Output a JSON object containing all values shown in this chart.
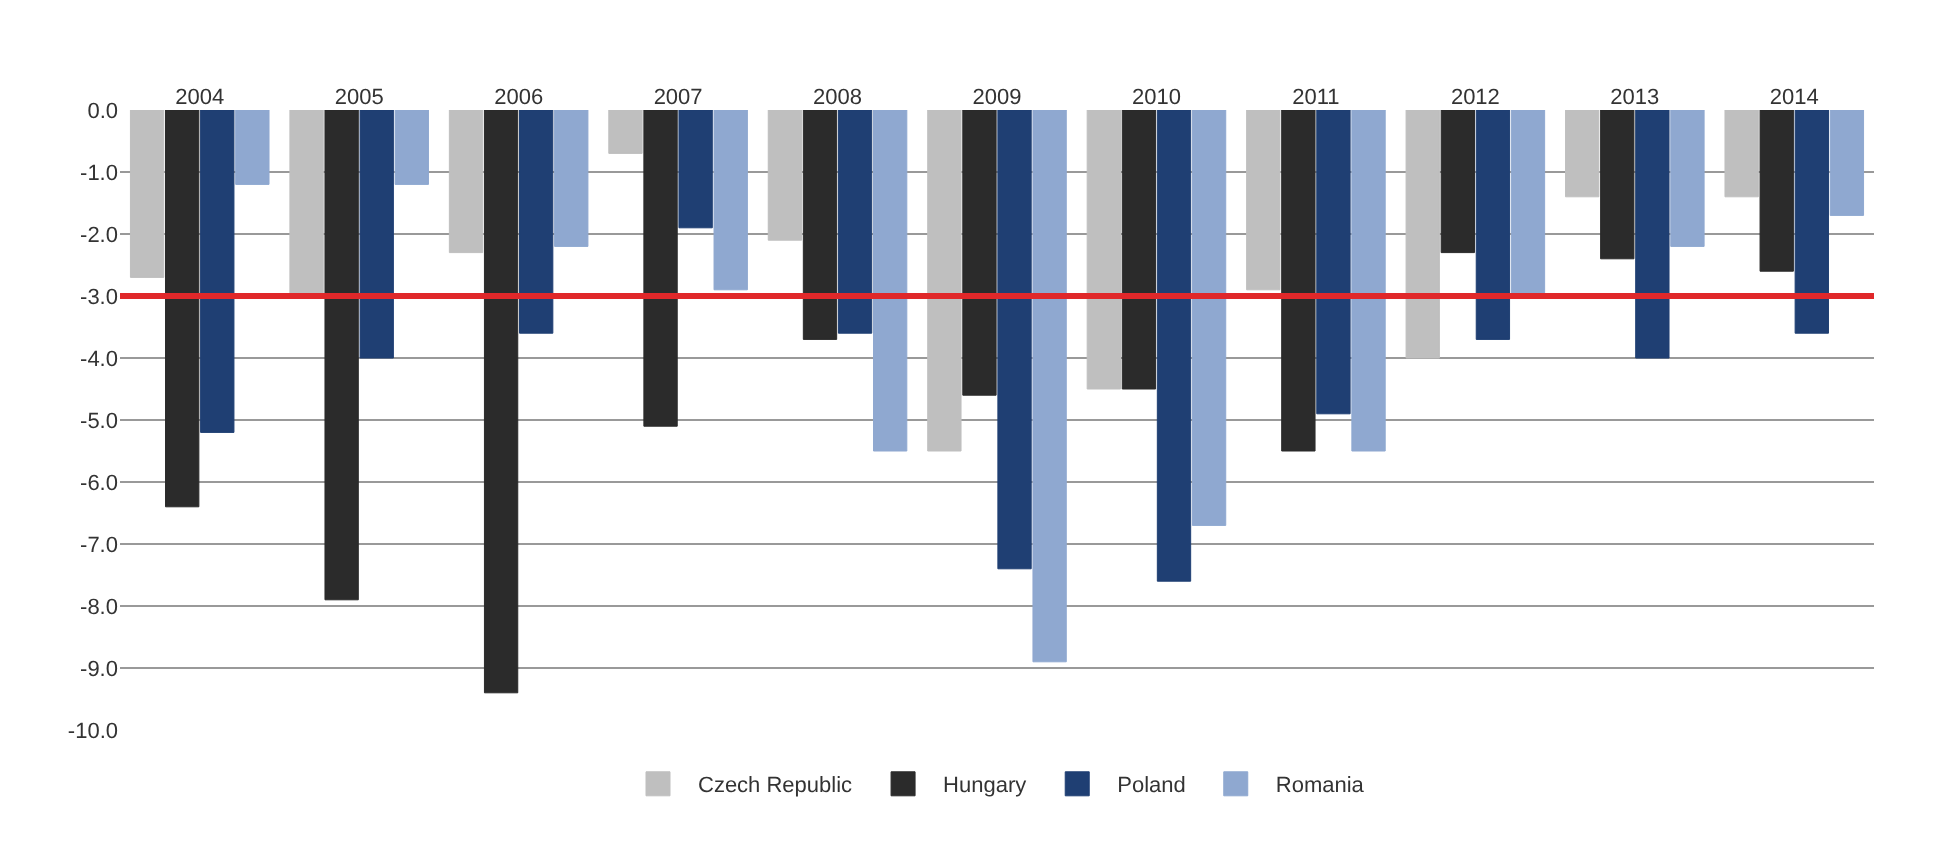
{
  "chart_data": {
    "type": "bar",
    "categories": [
      "2004",
      "2005",
      "2006",
      "2007",
      "2008",
      "2009",
      "2010",
      "2011",
      "2012",
      "2013",
      "2014"
    ],
    "series": [
      {
        "name": "Czech Republic",
        "color": "#bfbfbf",
        "values": [
          -2.7,
          -3.0,
          -2.3,
          -0.7,
          -2.1,
          -5.5,
          -4.5,
          -2.9,
          -4.0,
          -1.4,
          -1.4
        ]
      },
      {
        "name": "Hungary",
        "color": "#2b2b2b",
        "values": [
          -6.4,
          -7.9,
          -9.4,
          -5.1,
          -3.7,
          -4.6,
          -4.5,
          -5.5,
          -2.3,
          -2.4,
          -2.6
        ]
      },
      {
        "name": "Poland",
        "color": "#1f3f73",
        "values": [
          -5.2,
          -4.0,
          -3.6,
          -1.9,
          -3.6,
          -7.4,
          -7.6,
          -4.9,
          -3.7,
          -4.0,
          -3.6
        ]
      },
      {
        "name": "Romania",
        "color": "#8fa8d0",
        "values": [
          -1.2,
          -1.2,
          -2.2,
          -2.9,
          -5.5,
          -8.9,
          -6.7,
          -5.5,
          -3.0,
          -2.2,
          -1.7
        ]
      }
    ],
    "ylim": [
      -10,
      0
    ],
    "yticks": [
      {
        "value": 0,
        "label": "0.0"
      },
      {
        "value": -1,
        "label": "-1.0"
      },
      {
        "value": -2,
        "label": "-2.0"
      },
      {
        "value": -3,
        "label": "-3.0"
      },
      {
        "value": -4,
        "label": "-4.0"
      },
      {
        "value": -5,
        "label": "-5.0"
      },
      {
        "value": -6,
        "label": "-6.0"
      },
      {
        "value": -7,
        "label": "-7.0"
      },
      {
        "value": -8,
        "label": "-8.0"
      },
      {
        "value": -9,
        "label": "-9.0"
      },
      {
        "value": -10,
        "label": "-10.0"
      }
    ],
    "ref_lines": [
      {
        "axis": "y",
        "value": -3.0,
        "color": "#e0282a"
      }
    ],
    "grid": "y",
    "legend": "bottom"
  }
}
